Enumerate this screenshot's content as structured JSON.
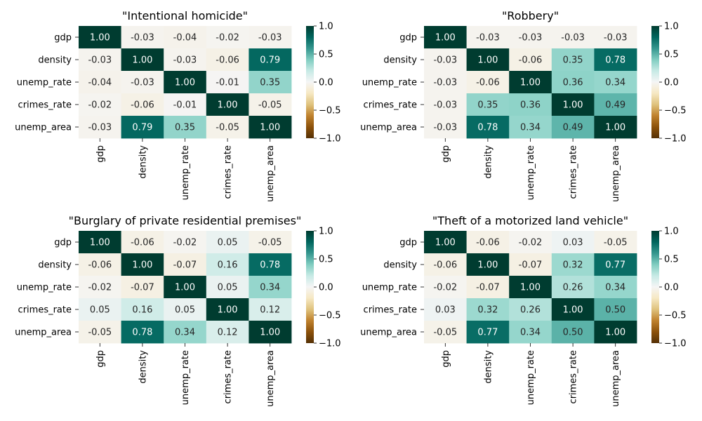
{
  "chart_data": [
    {
      "type": "heatmap",
      "title": "\"Intentional homicide\"",
      "rows": [
        "gdp",
        "density",
        "unemp_rate",
        "crimes_rate",
        "unemp_area"
      ],
      "columns": [
        "gdp",
        "density",
        "unemp_rate",
        "crimes_rate",
        "unemp_area"
      ],
      "values": [
        [
          1.0,
          -0.03,
          -0.04,
          -0.02,
          -0.03
        ],
        [
          -0.03,
          1.0,
          -0.03,
          -0.06,
          0.79
        ],
        [
          -0.04,
          -0.03,
          1.0,
          -0.01,
          0.35
        ],
        [
          -0.02,
          -0.06,
          -0.01,
          1.0,
          -0.05
        ],
        [
          -0.03,
          0.79,
          0.35,
          -0.05,
          1.0
        ]
      ],
      "vmin": -1.0,
      "vmax": 1.0,
      "colormap": "BrBG",
      "colorbar_ticks": [
        "1.0",
        "0.5",
        "0.0",
        "−0.5",
        "−1.0"
      ]
    },
    {
      "type": "heatmap",
      "title": "\"Robbery\"",
      "rows": [
        "gdp",
        "density",
        "unemp_rate",
        "crimes_rate",
        "unemp_area"
      ],
      "columns": [
        "gdp",
        "density",
        "unemp_rate",
        "crimes_rate",
        "unemp_area"
      ],
      "values": [
        [
          1.0,
          -0.03,
          -0.03,
          -0.03,
          -0.03
        ],
        [
          -0.03,
          1.0,
          -0.06,
          0.35,
          0.78
        ],
        [
          -0.03,
          -0.06,
          1.0,
          0.36,
          0.34
        ],
        [
          -0.03,
          0.35,
          0.36,
          1.0,
          0.49
        ],
        [
          -0.03,
          0.78,
          0.34,
          0.49,
          1.0
        ]
      ],
      "vmin": -1.0,
      "vmax": 1.0,
      "colormap": "BrBG",
      "colorbar_ticks": [
        "1.0",
        "0.5",
        "0.0",
        "−0.5",
        "−1.0"
      ]
    },
    {
      "type": "heatmap",
      "title": "\"Burglary of private residential premises\"",
      "rows": [
        "gdp",
        "density",
        "unemp_rate",
        "crimes_rate",
        "unemp_area"
      ],
      "columns": [
        "gdp",
        "density",
        "unemp_rate",
        "crimes_rate",
        "unemp_area"
      ],
      "values": [
        [
          1.0,
          -0.06,
          -0.02,
          0.05,
          -0.05
        ],
        [
          -0.06,
          1.0,
          -0.07,
          0.16,
          0.78
        ],
        [
          -0.02,
          -0.07,
          1.0,
          0.05,
          0.34
        ],
        [
          0.05,
          0.16,
          0.05,
          1.0,
          0.12
        ],
        [
          -0.05,
          0.78,
          0.34,
          0.12,
          1.0
        ]
      ],
      "vmin": -1.0,
      "vmax": 1.0,
      "colormap": "BrBG",
      "colorbar_ticks": [
        "1.0",
        "0.5",
        "0.0",
        "−0.5",
        "−1.0"
      ]
    },
    {
      "type": "heatmap",
      "title": "\"Theft of a motorized land vehicle\"",
      "rows": [
        "gdp",
        "density",
        "unemp_rate",
        "crimes_rate",
        "unemp_area"
      ],
      "columns": [
        "gdp",
        "density",
        "unemp_rate",
        "crimes_rate",
        "unemp_area"
      ],
      "values": [
        [
          1.0,
          -0.06,
          -0.02,
          0.03,
          -0.05
        ],
        [
          -0.06,
          1.0,
          -0.07,
          0.32,
          0.77
        ],
        [
          -0.02,
          -0.07,
          1.0,
          0.26,
          0.34
        ],
        [
          0.03,
          0.32,
          0.26,
          1.0,
          0.5
        ],
        [
          -0.05,
          0.77,
          0.34,
          0.5,
          1.0
        ]
      ],
      "vmin": -1.0,
      "vmax": 1.0,
      "colormap": "BrBG",
      "colorbar_ticks": [
        "1.0",
        "0.5",
        "0.0",
        "−0.5",
        "−1.0"
      ]
    }
  ]
}
